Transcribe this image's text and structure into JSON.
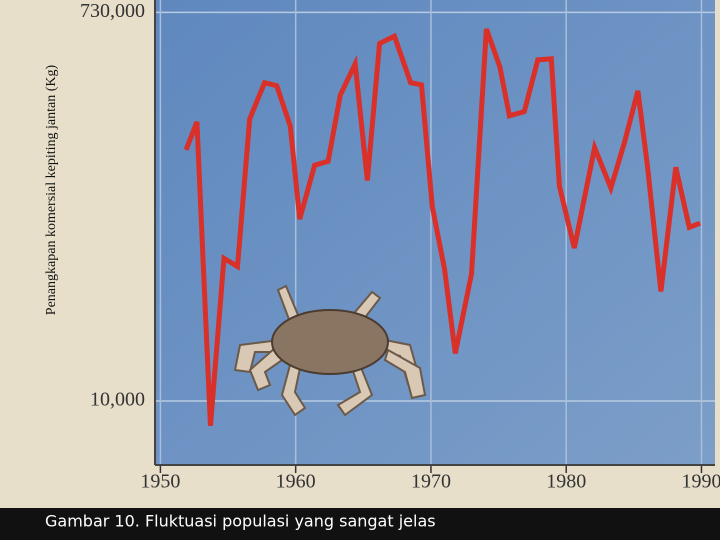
{
  "chart_data": {
    "type": "line",
    "y_label": "Penangkapan komersial kepiting jantan (Kg)",
    "caption": "Gambar 10. Fluktuasi populasi yang sangat jelas",
    "log_y": true,
    "grid": true,
    "xlim": [
      1949.6,
      1991
    ],
    "xticks": [
      1950,
      1960,
      1970,
      1980,
      1990
    ],
    "ylim": [
      4930,
      837000
    ],
    "yticks": [
      {
        "value": 10000,
        "label": "10,000"
      },
      {
        "value": 730000,
        "label": "730,000"
      }
    ],
    "x": [
      1951.9,
      1952.7,
      1953.7,
      1954.7,
      1955.7,
      1956.6,
      1957.7,
      1958.6,
      1959.6,
      1960.3,
      1961.4,
      1962.4,
      1963.3,
      1964.4,
      1965.3,
      1966.2,
      1967.3,
      1968.5,
      1969.3,
      1970.1,
      1971.0,
      1971.8,
      1973.0,
      1974.1,
      1975.1,
      1975.8,
      1976.9,
      1977.9,
      1978.9,
      1979.5,
      1980.6,
      1982.1,
      1983.3,
      1984.3,
      1985.3,
      1986.0,
      1987.0,
      1988.1,
      1989.1,
      1989.9
    ],
    "series": [
      {
        "color": "#d9302a",
        "values": [
          160000,
          218000,
          7600,
          48300,
          44100,
          225000,
          336000,
          325000,
          208000,
          74500,
          135000,
          141000,
          293000,
          413000,
          114000,
          518000,
          561000,
          336000,
          328000,
          85400,
          43100,
          16900,
          40700,
          608000,
          399000,
          233000,
          244000,
          432000,
          437000,
          107000,
          54100,
          164000,
          105000,
          173000,
          307000,
          135000,
          33500,
          132000,
          68000,
          71200
        ]
      }
    ]
  }
}
